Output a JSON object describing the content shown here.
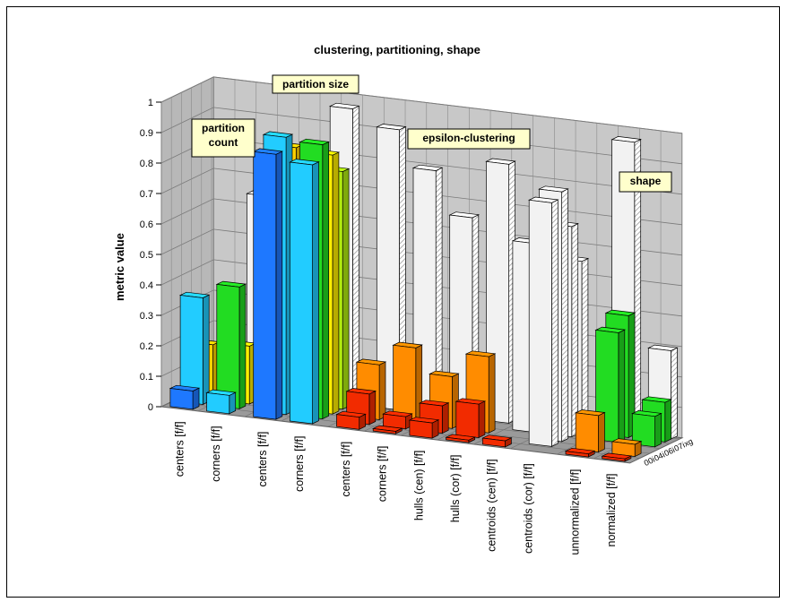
{
  "chart_data": {
    "type": "bar",
    "subtype": "3d-bar",
    "title": "clustering, partitioning, shape",
    "ylabel": "metric value",
    "ylim": [
      0,
      1
    ],
    "yticks": [
      "0",
      "0.1",
      "0.2",
      "0.3",
      "0.4",
      "0.5",
      "0.6",
      "0.7",
      "0.8",
      "0.9",
      "1"
    ],
    "grid": true,
    "series": [
      {
        "name": "00i",
        "color": "#f22b00"
      },
      {
        "name": "04i",
        "color": "#ff8c00"
      },
      {
        "name": "06i",
        "color": "#ffd200"
      },
      {
        "name": "07i",
        "color": "#22dc22"
      },
      {
        "name": "xg",
        "color": "#e8e8e8"
      }
    ],
    "categories": [
      "centers [f/f]",
      "corners [f/f]",
      "centers [f/f]",
      "corners [f/f]",
      "centers [f/f]",
      "corners [f/f]",
      "hulls (cen) [f/f]",
      "hulls (cor) [f/f]",
      "centroids (cen) [f/f]",
      "centroids (cor) [f/f]",
      "unnormalized [f/f]",
      "normalized [f/f]"
    ],
    "category_gaps_after": [
      1,
      3,
      9
    ],
    "bars": [
      {
        "cat": 0,
        "row": 2,
        "value": 0.18,
        "color": "#ffd200"
      },
      {
        "cat": 1,
        "row": 2,
        "value": 0.19,
        "color": "#ffef00"
      },
      {
        "cat": 0,
        "row": 3,
        "value": 0.03,
        "color": "#c8f000"
      },
      {
        "cat": 1,
        "row": 3,
        "value": 0.04,
        "color": "#b0ec10"
      },
      {
        "cat": 0,
        "row": 1,
        "value": 0.35,
        "color": "#22ccff"
      },
      {
        "cat": 1,
        "row": 1,
        "value": 0.4,
        "color": "#22dc22"
      },
      {
        "cat": 0,
        "row": 0,
        "value": 0.06,
        "color": "#1e78ff"
      },
      {
        "cat": 1,
        "row": 0,
        "value": 0.06,
        "color": "#22ccff"
      },
      {
        "cat": 1,
        "row": 4,
        "value": 0.65,
        "color": "#e8e8e8"
      },
      {
        "cat": 2,
        "row": 4,
        "value": 0.01,
        "color": "#e8e8e8"
      },
      {
        "cat": 2,
        "row": 2,
        "value": 0.86,
        "color": "#ffd200"
      },
      {
        "cat": 3,
        "row": 2,
        "value": 0.85,
        "color": "#ffef00"
      },
      {
        "cat": 2,
        "row": 3,
        "value": 0.81,
        "color": "#c8f000"
      },
      {
        "cat": 3,
        "row": 3,
        "value": 0.78,
        "color": "#b0ec10"
      },
      {
        "cat": 2,
        "row": 1,
        "value": 0.91,
        "color": "#22ccff"
      },
      {
        "cat": 3,
        "row": 1,
        "value": 0.9,
        "color": "#22dc22"
      },
      {
        "cat": 2,
        "row": 0,
        "value": 0.87,
        "color": "#1e78ff"
      },
      {
        "cat": 3,
        "row": 0,
        "value": 0.85,
        "color": "#22ccff"
      },
      {
        "cat": 3,
        "row": 4,
        "value": 0.97,
        "color": "#e8e8e8"
      },
      {
        "cat": 4,
        "row": 4,
        "value": 0.92,
        "color": "#e8e8e8"
      },
      {
        "cat": 4,
        "row": 0,
        "value": 0.04,
        "color": "#f22b00"
      },
      {
        "cat": 5,
        "row": 0,
        "value": 0.0,
        "color": "#f22b00"
      },
      {
        "cat": 4,
        "row": 1,
        "value": 0.1,
        "color": "#f22b00"
      },
      {
        "cat": 5,
        "row": 1,
        "value": 0.04,
        "color": "#f22b00"
      },
      {
        "cat": 4,
        "row": 2,
        "value": 0.18,
        "color": "#ff8c00"
      },
      {
        "cat": 5,
        "row": 2,
        "value": 0.25,
        "color": "#ff8c00"
      },
      {
        "cat": 5,
        "row": 4,
        "value": 0.8,
        "color": "#e8e8e8"
      },
      {
        "cat": 6,
        "row": 0,
        "value": 0.05,
        "color": "#f22b00"
      },
      {
        "cat": 7,
        "row": 0,
        "value": 0.0,
        "color": "#f22b00"
      },
      {
        "cat": 6,
        "row": 1,
        "value": 0.09,
        "color": "#f22b00"
      },
      {
        "cat": 7,
        "row": 1,
        "value": 0.11,
        "color": "#f22b00"
      },
      {
        "cat": 6,
        "row": 2,
        "value": 0.17,
        "color": "#ff8c00"
      },
      {
        "cat": 7,
        "row": 2,
        "value": 0.25,
        "color": "#ff8c00"
      },
      {
        "cat": 6,
        "row": 4,
        "value": 0.66,
        "color": "#e8e8e8"
      },
      {
        "cat": 7,
        "row": 4,
        "value": 0.85,
        "color": "#e8e8e8"
      },
      {
        "cat": 8,
        "row": 0,
        "value": 0.02,
        "color": "#f22b00"
      },
      {
        "cat": 8,
        "row": 4,
        "value": 0.6,
        "color": "#e8e8e8"
      },
      {
        "cat": 9,
        "row": 4,
        "value": 0.56,
        "color": "#e8e8e8"
      },
      {
        "cat": 8,
        "row": 3,
        "value": 0.62,
        "color": "#e8e8e8"
      },
      {
        "cat": 9,
        "row": 3,
        "value": 0.69,
        "color": "#e8e8e8"
      },
      {
        "cat": 9,
        "row": 2,
        "value": 0.82,
        "color": "#e8e8e8"
      },
      {
        "cat": 9,
        "row": 1,
        "value": 0.8,
        "color": "#e8e8e8"
      },
      {
        "cat": 10,
        "row": 0,
        "value": 0.01,
        "color": "#f22b00"
      },
      {
        "cat": 11,
        "row": 0,
        "value": 0.0,
        "color": "#f22b00"
      },
      {
        "cat": 10,
        "row": 1,
        "value": 0.12,
        "color": "#ff8c00"
      },
      {
        "cat": 11,
        "row": 1,
        "value": 0.04,
        "color": "#ff8c00"
      },
      {
        "cat": 10,
        "row": 3,
        "value": 0.36,
        "color": "#22dc22"
      },
      {
        "cat": 11,
        "row": 3,
        "value": 0.1,
        "color": "#22dc22"
      },
      {
        "cat": 10,
        "row": 4,
        "value": 0.4,
        "color": "#22dc22"
      },
      {
        "cat": 11,
        "row": 4,
        "value": 0.13,
        "color": "#22dc22"
      },
      {
        "cat": 10,
        "row": 4.6,
        "value": 0.96,
        "color": "#e8e8e8"
      },
      {
        "cat": 11,
        "row": 4.6,
        "value": 0.29,
        "color": "#e8e8e8"
      }
    ],
    "annotations": [
      {
        "text": "partition size"
      },
      {
        "text": "partition\ncount"
      },
      {
        "text": "epsilon-clustering"
      },
      {
        "text": "shape"
      }
    ]
  }
}
